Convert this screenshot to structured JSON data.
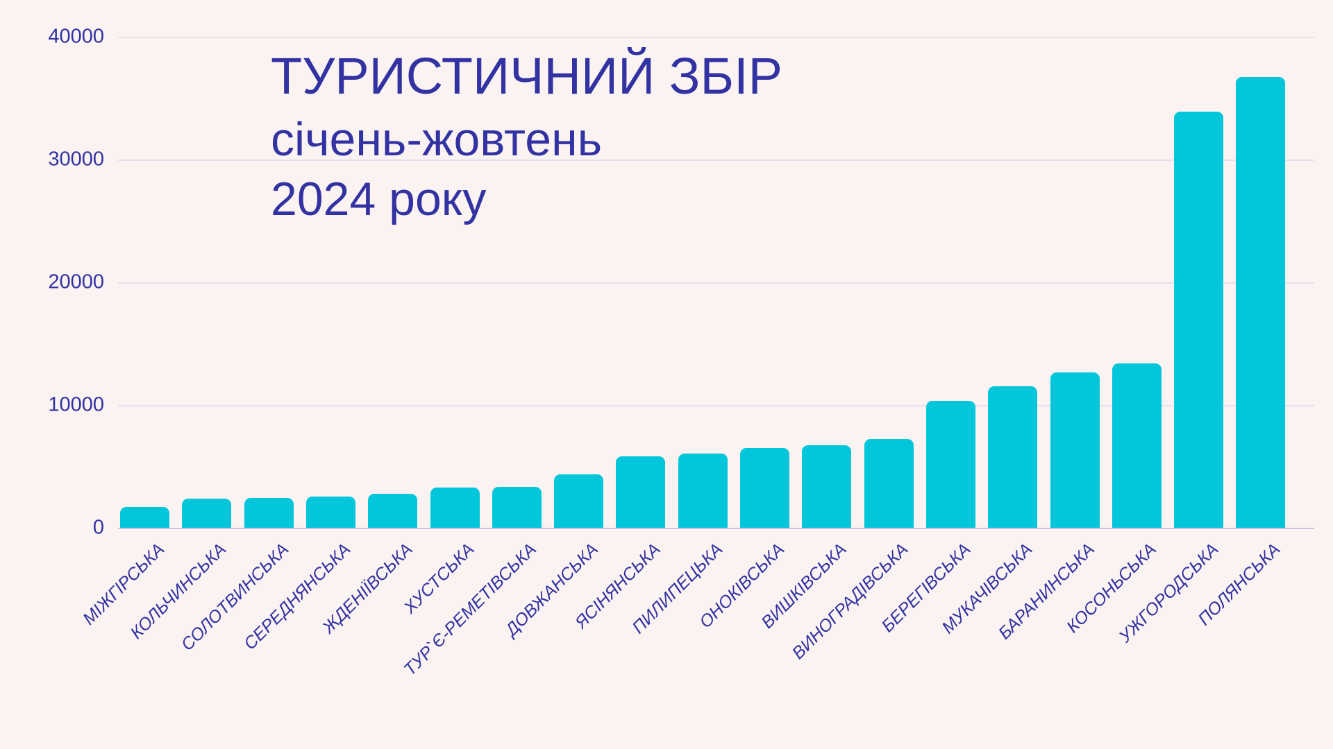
{
  "chart_data": {
    "type": "bar",
    "title": "ТУРИСТИЧНИЙ ЗБІР січень-жовтень 2024 року",
    "title_lines": [
      "ТУРИСТИЧНИЙ ЗБІР",
      "січень-жовтень",
      "2024 року"
    ],
    "categories": [
      "МІЖГІРСЬКА",
      "КОЛЬЧИНСЬКА",
      "СОЛОТВИНСЬКА",
      "СЕРЕДНЯНСЬКА",
      "ЖДЕНІЇВСЬКА",
      "ХУСТСЬКА",
      "ТУР`Є-РЕМЕТІВСЬКА",
      "ДОВЖАНСЬКА",
      "ЯСІНЯНСЬКА",
      "ПИЛИПЕЦЬКА",
      "ОНОКІВСЬКА",
      "ВИШКІВСЬКА",
      "ВИНОГРАДІВСЬКА",
      "БЕРЕГІВСЬКА",
      "МУКАЧІВСЬКА",
      "БАРАНИНСЬКА",
      "КОСОНЬСЬКА",
      "УЖГОРОДСЬКА",
      "ПОЛЯНСЬКА"
    ],
    "values": [
      1700,
      2400,
      2450,
      2520,
      2770,
      3280,
      3340,
      4350,
      5800,
      6040,
      6510,
      6740,
      7230,
      10340,
      11520,
      12670,
      13370,
      33920,
      36720
    ],
    "xlabel": "",
    "ylabel": "",
    "ylim": [
      0,
      40000
    ],
    "yticks": [
      0,
      10000,
      20000,
      30000,
      40000
    ],
    "grid": "horizontal",
    "legend": "none",
    "colors": {
      "bar": "#03c6da",
      "text": "#3232a2",
      "background": "#faf3f1",
      "gridline": "#e4e1ed",
      "axis_line": "#c8c4d8"
    }
  }
}
